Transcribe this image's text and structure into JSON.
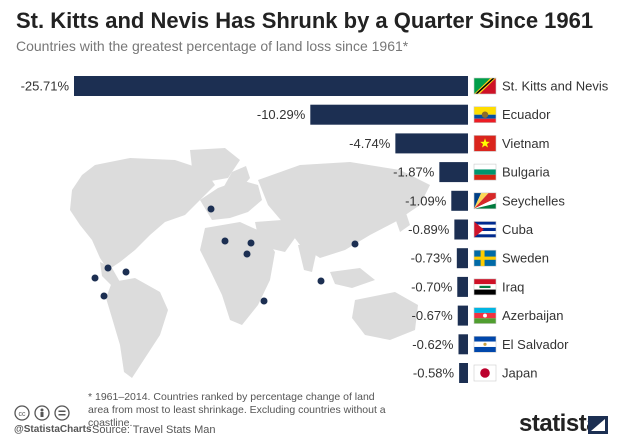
{
  "title": "St. Kitts and Nevis Has Shrunk by a Quarter Since 1961",
  "subtitle": "Countries with the greatest percentage of land loss since 1961*",
  "footnote": "* 1961–2014. Countries ranked by percentage change of land area from most to least shrinkage. Excluding countries without a coastline.",
  "source": "Source: Travel Stats Man",
  "handle": "@StatistaCharts",
  "brand": "statista",
  "colors": {
    "bar": "#1c2f52",
    "map": "#dcdcdc",
    "dot": "#1c2f52",
    "background": "#ffffff"
  },
  "chart_data": {
    "type": "bar",
    "orientation": "horizontal",
    "categories": [
      "St. Kitts and Nevis",
      "Ecuador",
      "Vietnam",
      "Bulgaria",
      "Seychelles",
      "Cuba",
      "Sweden",
      "Iraq",
      "Azerbaijan",
      "El Salvador",
      "Japan"
    ],
    "values": [
      -25.71,
      -10.29,
      -4.74,
      -1.87,
      -1.09,
      -0.89,
      -0.73,
      -0.7,
      -0.67,
      -0.62,
      -0.58
    ],
    "data_labels": [
      "-25.71%",
      "-10.29%",
      "-4.74%",
      "-1.87%",
      "-1.09%",
      "-0.89%",
      "-0.73%",
      "-0.70%",
      "-0.67%",
      "-0.62%",
      "-0.58%"
    ],
    "flag_icons": [
      "flag-st-kitts-and-nevis",
      "flag-ecuador",
      "flag-vietnam",
      "flag-bulgaria",
      "flag-seychelles",
      "flag-cuba",
      "flag-sweden",
      "flag-iraq",
      "flag-azerbaijan",
      "flag-el-salvador",
      "flag-japan"
    ],
    "xlim": [
      -25.71,
      0
    ],
    "grid": false,
    "legend": "none"
  }
}
